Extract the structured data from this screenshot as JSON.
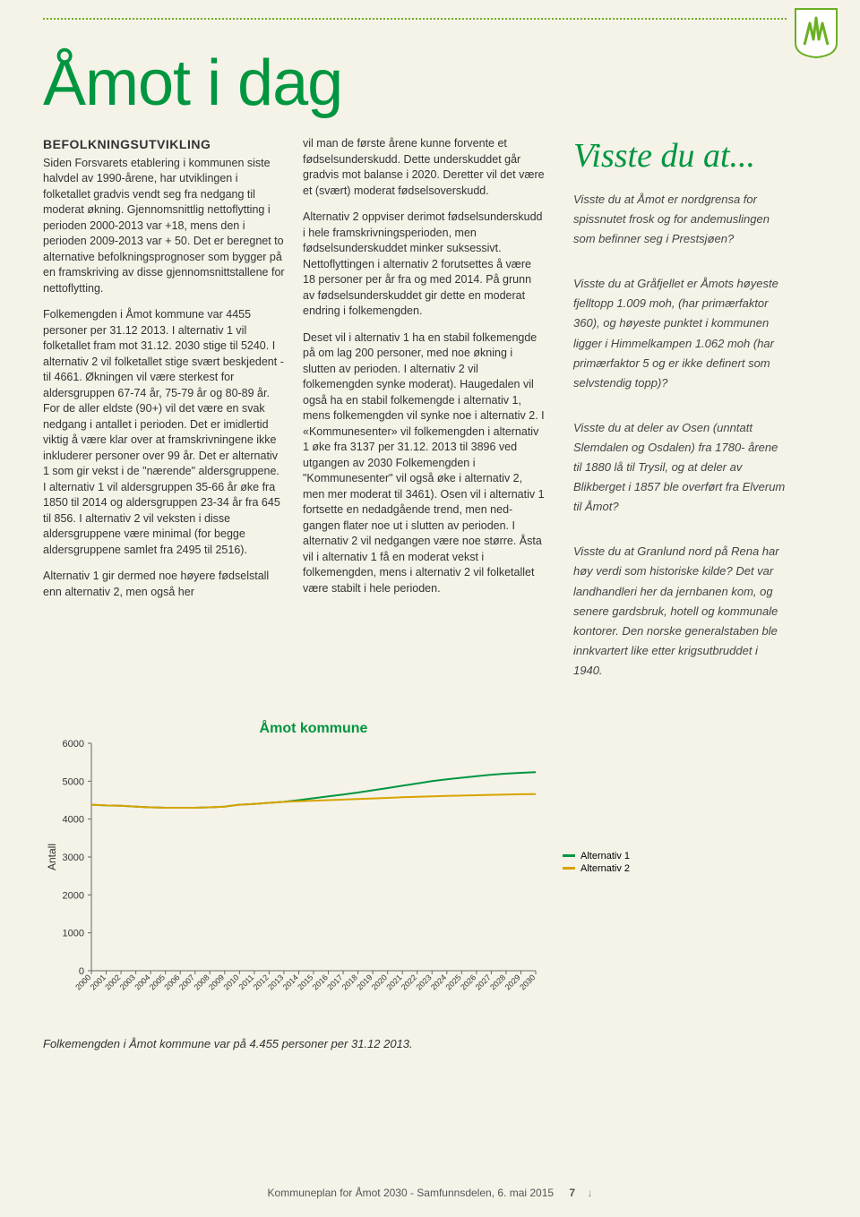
{
  "page": {
    "title": "Åmot i dag",
    "footer_text": "Kommuneplan for Åmot 2030 - Samfunnsdelen, 6. mai 2015",
    "page_number": "7",
    "caption": "Folkemengden i Åmot kommune var på 4.455 personer per 31.12 2013."
  },
  "col1": {
    "heading": "BEFOLKNINGSUTVIKLING",
    "p1": "Siden Forsvarets etablering i kommunen siste halvdel av 1990-årene, har utviklingen i folketallet gradvis vendt seg fra nedgang til moderat økning. Gjennomsnittlig nettoflytting i perioden 2000-2013 var +18, mens den i perioden 2009-2013 var + 50. Det er beregnet to alternative befolkningsprognoser som bygger på en framskriving av disse gjennomsnittstallene for nettoflytting.",
    "p2": "Folkemengden i Åmot kommune var 4455 personer per 31.12 2013. I alternativ 1 vil folketallet fram mot 31.12. 2030 stige til 5240. I alternativ 2 vil folketallet stige svært beskjedent - til 4661. Økningen vil være sterkest for aldersgruppen 67-74 år, 75-79 år og 80-89 år. For de aller eldste (90+) vil det være en svak nedgang i antallet i perioden. Det er imidlertid viktig å være klar over at framskrivningene ikke inkluderer personer over 99 år. Det er alternativ 1 som gir vekst i de \"nærende\" aldersgruppene. I alternativ 1 vil aldersgruppen 35-66 år øke fra 1850 til 2014 og aldersgruppen 23-34 år fra 645 til 856. I alternativ 2 vil veksten i disse aldersgruppene være minimal (for begge aldersgruppene samlet fra 2495 til 2516).",
    "p3": "Alternativ 1 gir dermed noe høyere fødselstall enn alternativ 2, men også her"
  },
  "col2": {
    "p1": "vil man de første årene kunne forvente et fødselsunderskudd. Dette underskuddet går gradvis mot balanse i 2020. Deretter vil det være et (svært) moderat fødselsoverskudd.",
    "p2": "Alternativ 2 oppviser derimot fødselsunderskudd i hele framskrivningsperioden, men fødselsunderskuddet minker suksessivt. Nettoflyttingen i alternativ 2 forutsettes å være 18 personer per år fra og med 2014. På grunn av fødselsunderskuddet gir dette en moderat endring i folkemengden.",
    "p3": "Deset vil i alternativ 1 ha en stabil folkemengde på om lag 200 personer, med noe økning i slutten av perioden. I alternativ 2 vil folkemengden synke moderat). Haugedalen vil også ha en stabil folkemengde i alternativ 1, mens folkemengden vil synke noe i alternativ 2. I «Kommunesenter» vil folkemengden i alternativ 1 øke fra 3137 per 31.12. 2013 til 3896 ved utgangen av 2030 Folkemengden i \"Kommunesenter\" vil også øke i alternativ 2, men mer moderat til 3461). Osen vil i alternativ 1 fortsette en nedadgående trend, men ned-gangen flater noe ut i slutten av perioden. I alternativ 2 vil nedgangen være noe større. Åsta vil i alternativ 1 få en moderat vekst i folkemengden, mens i alternativ 2 vil folketallet være stabilt i hele perioden."
  },
  "sidebar": {
    "title": "Visste du at...",
    "items": [
      "Visste du at Åmot er nordgrensa for spissnutet frosk og for andemuslingen som befinner seg i Prestsjøen?",
      "Visste du at Gråfjellet er Åmots høyeste fjelltopp 1.009 moh, (har primærfaktor 360), og høyeste punktet i kommunen ligger i Himmelkampen 1.062 moh (har primærfaktor 5 og er ikke definert som selvstendig topp)?",
      "Visste du at deler av Osen (unntatt Slemdalen og Osdalen) fra 1780- årene til 1880 lå til Trysil, og at deler av Blikberget i 1857 ble overført fra Elverum til Åmot?",
      "Visste du at Granlund nord på Rena har høy verdi som historiske kilde? Det var landhandleri her da jernbanen kom, og senere gardsbruk, hotell og kommunale kontorer. Den norske generalstaben ble innkvartert like etter krigsutbruddet i 1940."
    ]
  },
  "chart": {
    "title": "Åmot kommune",
    "ylabel": "Antall",
    "ylim": [
      0,
      6000
    ],
    "ytick_step": 1000,
    "yticks": [
      0,
      1000,
      2000,
      3000,
      4000,
      5000,
      6000
    ],
    "x_categories": [
      "2000",
      "2001",
      "2002",
      "2003",
      "2004",
      "2005",
      "2006",
      "2007",
      "2008",
      "2009",
      "2010",
      "2011",
      "2012",
      "2013",
      "2014",
      "2015",
      "2016",
      "2017",
      "2018",
      "2019",
      "2020",
      "2021",
      "2022",
      "2023",
      "2024",
      "2025",
      "2026",
      "2027",
      "2028",
      "2029",
      "2030"
    ],
    "series": [
      {
        "name": "Alternativ 1",
        "color": "#009640",
        "values": [
          4380,
          4360,
          4350,
          4330,
          4310,
          4300,
          4300,
          4300,
          4310,
          4330,
          4380,
          4400,
          4430,
          4455,
          4500,
          4550,
          4600,
          4650,
          4700,
          4760,
          4820,
          4880,
          4940,
          5000,
          5050,
          5090,
          5130,
          5170,
          5200,
          5220,
          5240
        ]
      },
      {
        "name": "Alternativ 2",
        "color": "#d7a400",
        "values": [
          4380,
          4360,
          4350,
          4330,
          4310,
          4300,
          4300,
          4300,
          4310,
          4330,
          4380,
          4400,
          4430,
          4455,
          4470,
          4485,
          4500,
          4515,
          4530,
          4545,
          4560,
          4575,
          4590,
          4600,
          4610,
          4620,
          4630,
          4640,
          4650,
          4656,
          4661
        ]
      }
    ],
    "title_fontsize": 16,
    "title_color": "#009640",
    "axis_color": "#666666",
    "background_color": "#f5f2e8",
    "grid_color": "#999999",
    "line_width": 2
  }
}
